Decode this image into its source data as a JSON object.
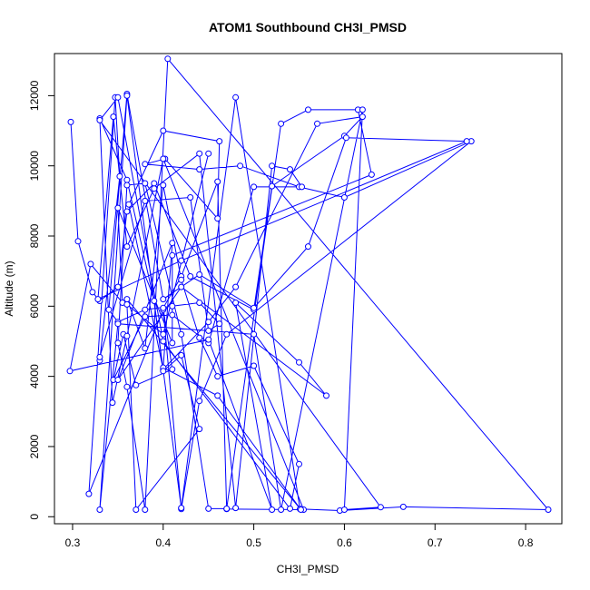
{
  "chart_data": {
    "type": "line",
    "title": "ATOM1 Southbound CH3I_PMSD",
    "xlabel": "CH3I_PMSD",
    "ylabel": "Altitude (m)",
    "xlim": [
      0.28,
      0.84
    ],
    "ylim": [
      -200,
      13200
    ],
    "x_ticks": [
      0.3,
      0.4,
      0.5,
      0.6,
      0.7,
      0.8
    ],
    "x_tick_labels": [
      "0.3",
      "0.4",
      "0.5",
      "0.6",
      "0.7",
      "0.8"
    ],
    "y_ticks": [
      0,
      2000,
      4000,
      6000,
      8000,
      10000,
      12000
    ],
    "y_tick_labels": [
      "0",
      "2000",
      "4000",
      "6000",
      "8000",
      "10000",
      "12000"
    ],
    "grid": false,
    "legend": "none",
    "markers": "open-circle",
    "series": [
      {
        "color": "#0000ff",
        "x": [
          0.298,
          0.306,
          0.322,
          0.33,
          0.35,
          0.36,
          0.39,
          0.43,
          0.5,
          0.52,
          0.6,
          0.62,
          0.57,
          0.48,
          0.45,
          0.4,
          0.362,
          0.4,
          0.462,
          0.46,
          0.402,
          0.38,
          0.44,
          0.485,
          0.55,
          0.6,
          0.74,
          0.47,
          0.44,
          0.42,
          0.4,
          0.318,
          0.347,
          0.352,
          0.33,
          0.33,
          0.38,
          0.43,
          0.45,
          0.462,
          0.44,
          0.41,
          0.38,
          0.35,
          0.34,
          0.36,
          0.4,
          0.44,
          0.5,
          0.56,
          0.602,
          0.735,
          0.42,
          0.328,
          0.345,
          0.36,
          0.39,
          0.44,
          0.48,
          0.52,
          0.54,
          0.553,
          0.5,
          0.45,
          0.41,
          0.38,
          0.345,
          0.356,
          0.37,
          0.41,
          0.4,
          0.42,
          0.46,
          0.47,
          0.555,
          0.4,
          0.36,
          0.344,
          0.33,
          0.36,
          0.39,
          0.42,
          0.48,
          0.551,
          0.595,
          0.665,
          0.825,
          0.405,
          0.38,
          0.36,
          0.35,
          0.36,
          0.38,
          0.42,
          0.45,
          0.47,
          0.53,
          0.56,
          0.615,
          0.63,
          0.41,
          0.41,
          0.35,
          0.355,
          0.32,
          0.297,
          0.45,
          0.52,
          0.48,
          0.55,
          0.58,
          0.42,
          0.35,
          0.41,
          0.4,
          0.46,
          0.552,
          0.36,
          0.38,
          0.4,
          0.42,
          0.44,
          0.46,
          0.5,
          0.55,
          0.54,
          0.4,
          0.35,
          0.33,
          0.64,
          0.6,
          0.62,
          0.53,
          0.5,
          0.35,
          0.33,
          0.36,
          0.4,
          0.42,
          0.44,
          0.37,
          0.36,
          0.4,
          0.45
        ],
        "y": [
          11250,
          7850,
          6400,
          6150,
          6550,
          8700,
          9500,
          6850,
          5900,
          9420,
          10850,
          11400,
          11200,
          6550,
          5550,
          4200,
          8900,
          11000,
          10700,
          8500,
          10200,
          10050,
          9900,
          10000,
          9400,
          9100,
          10700,
          5200,
          3300,
          220,
          5900,
          650,
          11950,
          9700,
          4450,
          4550,
          9000,
          9100,
          5300,
          5500,
          6100,
          6000,
          5900,
          5550,
          5900,
          12050,
          6200,
          6900,
          5950,
          7700,
          10800,
          10700,
          7300,
          6200,
          11400,
          7700,
          9350,
          10350,
          250,
          10000,
          9900,
          9400,
          9400,
          4950,
          5750,
          5700,
          3900,
          5200,
          3750,
          4200,
          5950,
          6850,
          9550,
          220,
          200,
          10200,
          5150,
          3250,
          11350,
          9600,
          6150,
          250,
          11950,
          220,
          175,
          280,
          200,
          13050,
          200,
          3700,
          4950,
          9450,
          9500,
          5200,
          230,
          230,
          11200,
          11600,
          11600,
          9750,
          7450,
          4950,
          8800,
          6100,
          7200,
          4150,
          5050,
          200,
          6100,
          4400,
          3450,
          6550,
          3900,
          7800,
          4250,
          3450,
          200,
          6200,
          4800,
          9450,
          6750,
          5100,
          4000,
          4300,
          1500,
          230,
          5000,
          11950,
          11300,
          270,
          200,
          11600,
          200,
          5200,
          5500,
          200,
          12000,
          4150,
          4600,
          2500,
          200,
          6050,
          5200,
          10350
        ]
      }
    ]
  }
}
